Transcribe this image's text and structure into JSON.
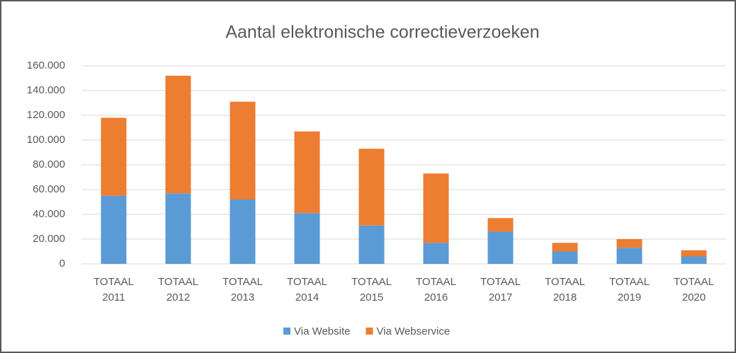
{
  "chart_data": {
    "type": "bar",
    "stacked": true,
    "title": "Aantal elektronische correctieverzoeken",
    "categories": [
      "TOTAAL 2011",
      "TOTAAL 2012",
      "TOTAAL 2013",
      "TOTAAL 2014",
      "TOTAAL 2015",
      "TOTAAL 2016",
      "TOTAAL 2017",
      "TOTAAL 2018",
      "TOTAAL 2019",
      "TOTAAL 2020"
    ],
    "series": [
      {
        "name": "Via Website",
        "color": "#5b9bd5",
        "values": [
          55000,
          57000,
          52000,
          41000,
          31000,
          17000,
          26000,
          10000,
          13000,
          6000
        ]
      },
      {
        "name": "Via Webservice",
        "color": "#ed7d31",
        "values": [
          63000,
          95000,
          79000,
          66000,
          62000,
          56000,
          11000,
          7000,
          7000,
          5000
        ]
      }
    ],
    "ylim": [
      0,
      160000
    ],
    "yticks": [
      0,
      {
        "value": 20000,
        "label": "20.000"
      },
      {
        "value": 40000,
        "label": "40.000"
      },
      {
        "value": 60000,
        "label": "60.000"
      },
      {
        "value": 80000,
        "label": "80.000"
      },
      {
        "value": 100000,
        "label": "100.000"
      },
      {
        "value": 120000,
        "label": "120.000"
      },
      {
        "value": 140000,
        "label": "140.000"
      },
      {
        "value": 160000,
        "label": "160.000"
      }
    ],
    "grid": true,
    "legend": "bottom"
  }
}
